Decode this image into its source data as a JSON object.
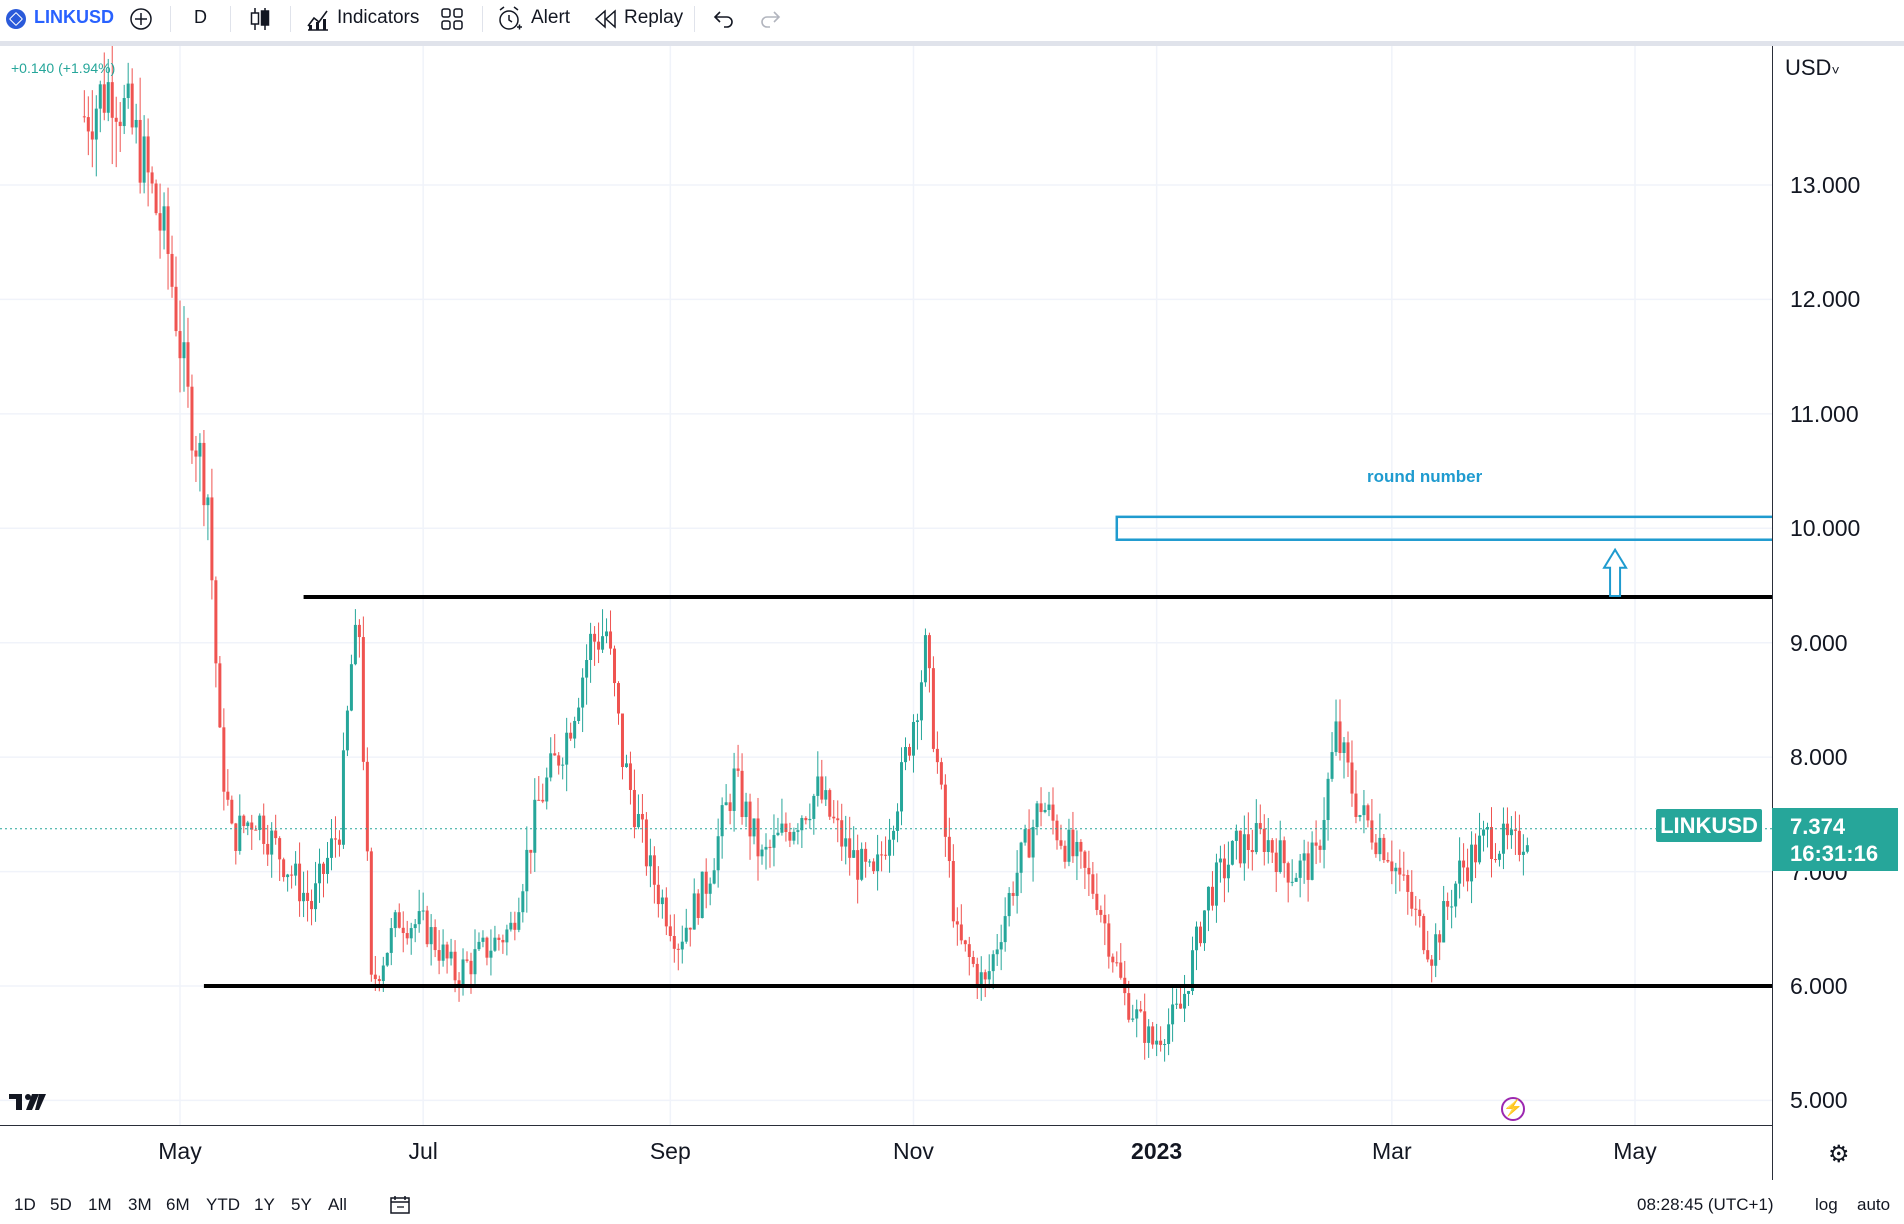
{
  "toolbar": {
    "symbol": "LINKUSD",
    "interval": "D",
    "indicators_label": "Indicators",
    "alert_label": "Alert",
    "replay_label": "Replay"
  },
  "chart": {
    "currency": "USD",
    "currency_caret": "USD˅",
    "change_readout": "+0.140 (+1.94%)",
    "price_labels": [
      "13.000",
      "12.000",
      "11.000",
      "10.000",
      "9.000",
      "8.000",
      "7.000",
      "6.000",
      "5.000"
    ],
    "time_labels": [
      "May",
      "Jul",
      "Sep",
      "Nov",
      "2023",
      "Mar",
      "May"
    ],
    "last_symbol_tag": "LINKUSD",
    "last_price": "7.374",
    "countdown": "16:31:16",
    "annotation": "round number",
    "colors": {
      "up": "#26a69a",
      "down": "#ef5350",
      "annotation": "#1f9bcf",
      "level_line": "#000000"
    }
  },
  "chart_data": {
    "type": "candlestick",
    "ylim": [
      4.9,
      14.2
    ],
    "x": [
      "2022-04-01",
      "2023-04-04"
    ],
    "support": 6.0,
    "resistance": 9.4,
    "target_zone": [
      9.9,
      10.1
    ],
    "last": 7.374,
    "close_path": [
      [
        "2022-04-07",
        13.6
      ],
      [
        "2022-04-14",
        13.9
      ],
      [
        "2022-04-21",
        13.3
      ],
      [
        "2022-04-28",
        12.4
      ],
      [
        "2022-05-03",
        11.1
      ],
      [
        "2022-05-08",
        10.3
      ],
      [
        "2022-05-11",
        8.1
      ],
      [
        "2022-05-14",
        7.3
      ],
      [
        "2022-05-20",
        7.5
      ],
      [
        "2022-05-27",
        7.1
      ],
      [
        "2022-06-03",
        6.7
      ],
      [
        "2022-06-10",
        7.4
      ],
      [
        "2022-06-13",
        8.8
      ],
      [
        "2022-06-15",
        9.1
      ],
      [
        "2022-06-18",
        6.0
      ],
      [
        "2022-06-25",
        6.6
      ],
      [
        "2022-07-02",
        6.5
      ],
      [
        "2022-07-09",
        6.1
      ],
      [
        "2022-07-16",
        6.3
      ],
      [
        "2022-07-23",
        6.5
      ],
      [
        "2022-07-30",
        7.6
      ],
      [
        "2022-08-06",
        8.2
      ],
      [
        "2022-08-12",
        9.0
      ],
      [
        "2022-08-16",
        9.1
      ],
      [
        "2022-08-20",
        8.0
      ],
      [
        "2022-08-27",
        7.0
      ],
      [
        "2022-09-03",
        6.4
      ],
      [
        "2022-09-10",
        6.9
      ],
      [
        "2022-09-17",
        7.8
      ],
      [
        "2022-09-24",
        7.1
      ],
      [
        "2022-10-01",
        7.4
      ],
      [
        "2022-10-08",
        7.7
      ],
      [
        "2022-10-15",
        7.2
      ],
      [
        "2022-10-22",
        6.9
      ],
      [
        "2022-10-29",
        7.8
      ],
      [
        "2022-11-04",
        8.9
      ],
      [
        "2022-11-08",
        7.6
      ],
      [
        "2022-11-12",
        6.4
      ],
      [
        "2022-11-19",
        6.0
      ],
      [
        "2022-11-26",
        6.9
      ],
      [
        "2022-12-03",
        7.6
      ],
      [
        "2022-12-10",
        7.2
      ],
      [
        "2022-12-17",
        6.8
      ],
      [
        "2022-12-24",
        5.9
      ],
      [
        "2022-12-31",
        5.5
      ],
      [
        "2023-01-07",
        5.8
      ],
      [
        "2023-01-14",
        6.8
      ],
      [
        "2023-01-21",
        7.2
      ],
      [
        "2023-01-28",
        7.3
      ],
      [
        "2023-02-04",
        7.0
      ],
      [
        "2023-02-10",
        7.1
      ],
      [
        "2023-02-15",
        8.2
      ],
      [
        "2023-02-21",
        7.5
      ],
      [
        "2023-02-28",
        7.2
      ],
      [
        "2023-03-07",
        6.6
      ],
      [
        "2023-03-11",
        6.3
      ],
      [
        "2023-03-18",
        7.0
      ],
      [
        "2023-03-25",
        7.3
      ],
      [
        "2023-04-01",
        7.2
      ],
      [
        "2023-04-04",
        7.374
      ]
    ]
  },
  "bottom": {
    "ranges": [
      "1D",
      "5D",
      "1M",
      "3M",
      "6M",
      "YTD",
      "1Y",
      "5Y",
      "All"
    ],
    "time": "08:28:45 (UTC+1)",
    "log": "log",
    "auto": "auto"
  }
}
